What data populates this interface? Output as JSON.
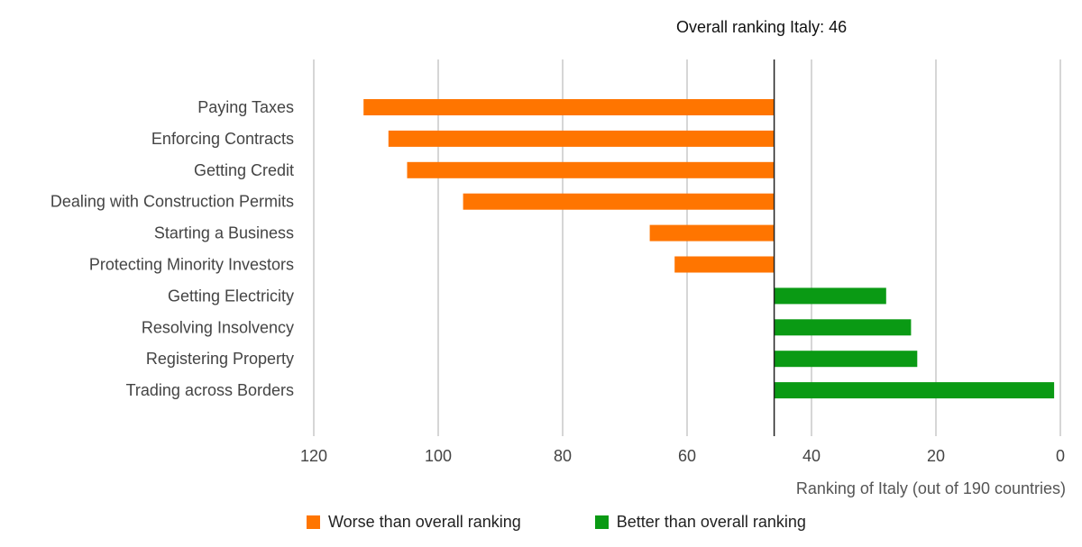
{
  "chart_data": {
    "type": "bar",
    "orientation": "horizontal",
    "reference_label": "Overall ranking Italy: 46",
    "reference_value": 46,
    "categories": [
      "Paying Taxes",
      "Enforcing Contracts",
      "Getting Credit",
      "Dealing with Construction Permits",
      "Starting a Business",
      "Protecting Minority Investors",
      "Getting Electricity",
      "Resolving Insolvency",
      "Registering Property",
      "Trading across Borders"
    ],
    "values": [
      112,
      108,
      105,
      96,
      66,
      62,
      28,
      24,
      23,
      1
    ],
    "xlabel": "Ranking of Italy (out of 190 countries)",
    "xlim": [
      120,
      0
    ],
    "xticks": [
      "120",
      "100",
      "80",
      "60",
      "40",
      "20",
      "0"
    ],
    "xtick_values": [
      120,
      100,
      80,
      60,
      40,
      20,
      0
    ],
    "grid": true,
    "legend_position": "bottom",
    "legend": [
      {
        "label": "Worse than overall ranking",
        "color": "#ff7500"
      },
      {
        "label": "Better than overall ranking",
        "color": "#0a9a14"
      }
    ]
  }
}
